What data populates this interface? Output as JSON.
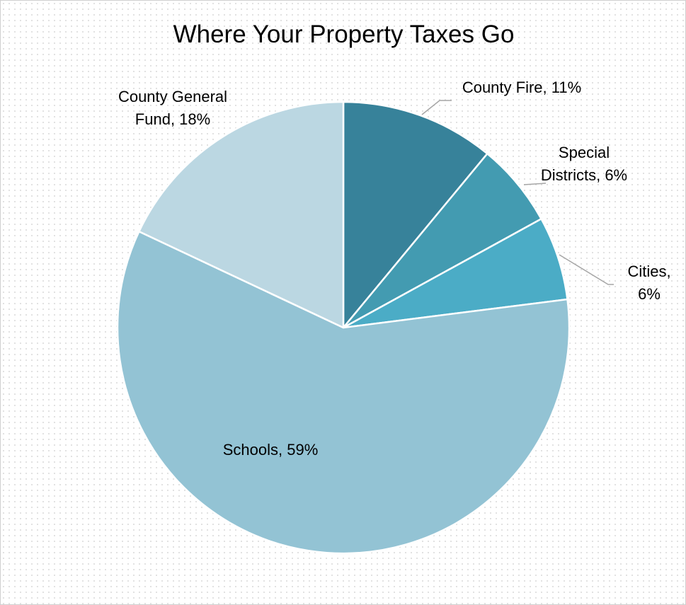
{
  "chart_data": {
    "type": "pie",
    "title": "Where Your Property Taxes Go",
    "slices": [
      {
        "label": "County Fire",
        "value": 11,
        "value_label": "11%",
        "color": "#37829A"
      },
      {
        "label": "Special Districts",
        "value": 6,
        "value_label": "6%",
        "color": "#439BB1"
      },
      {
        "label": "Cities",
        "value": 6,
        "value_label": "6%",
        "color": "#4BACC6"
      },
      {
        "label": "Schools",
        "value": 59,
        "value_label": "59%",
        "color": "#93C3D4"
      },
      {
        "label": "County General Fund",
        "value": 18,
        "value_label": "18%",
        "color": "#BBD7E2"
      }
    ],
    "data_labels": [
      {
        "lines": [
          "County Fire, 11%"
        ]
      },
      {
        "lines": [
          "Special",
          "Districts, 6%"
        ]
      },
      {
        "lines": [
          "Cities,",
          "6%"
        ]
      },
      {
        "lines": [
          "Schools, 59%"
        ]
      },
      {
        "lines": [
          "County General",
          "Fund, 18%"
        ]
      }
    ],
    "start_angle": "12 o'clock",
    "direction": "clockwise",
    "legend": "none"
  }
}
